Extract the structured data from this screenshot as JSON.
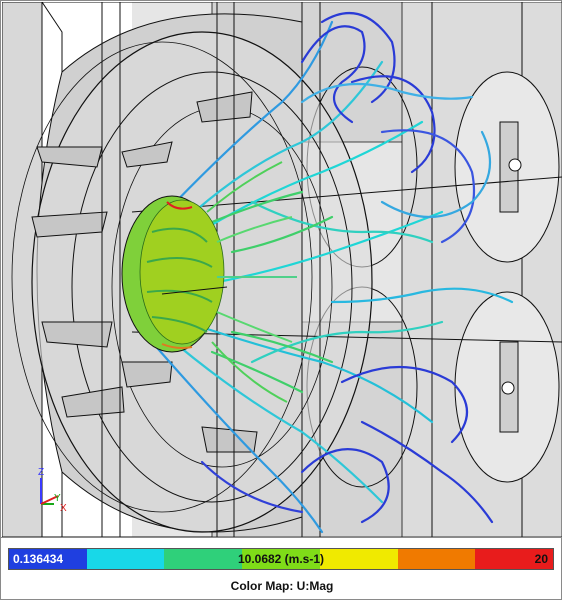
{
  "viewport": {
    "scene": "cfd-streamlines-pump",
    "colors": {
      "background": "#ffffff",
      "housing": "#cfcfcf",
      "wireframe": "#111111",
      "stream_low": "#2a3bd6",
      "stream_mid": "#1fd6d6",
      "stream_green": "#3fcf6a",
      "stream_high": "#a0d020"
    }
  },
  "axis_triad": {
    "z_label": "Z",
    "y_label": "Y",
    "x_label": "X",
    "colors": {
      "z": "#3a3aff",
      "y": "#18a818",
      "x": "#e02020"
    }
  },
  "colorbar": {
    "min_label": "0.136434",
    "mid_label": "10.0682 (m.s-1)",
    "max_label": "20",
    "segments": [
      "#1f3fe0",
      "#18d8e8",
      "#2fd07a",
      "#7fdc18",
      "#f0ea00",
      "#f07a00",
      "#e81c1c"
    ]
  },
  "color_map_title": "Color Map: U:Mag"
}
